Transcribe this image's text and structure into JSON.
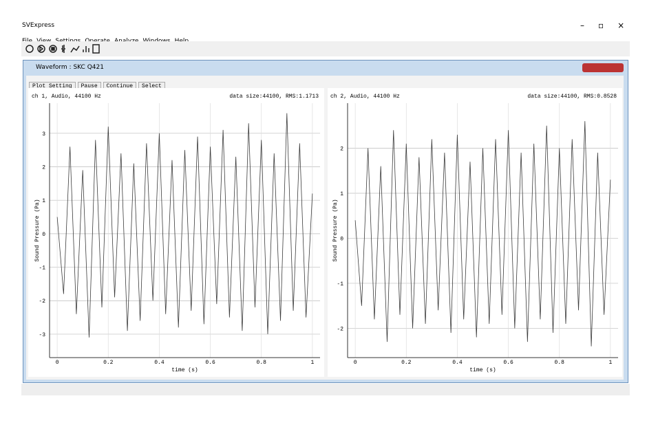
{
  "app": {
    "title": "SVExpress",
    "menu": [
      "File",
      "View",
      "Settings",
      "Operate",
      "Analyze",
      "Windows",
      "Help"
    ]
  },
  "window": {
    "title": "Waveform : SKC Q421",
    "buttons": [
      "Plot Setting",
      "Pause",
      "Continue",
      "Select"
    ]
  },
  "chart_data": [
    {
      "type": "line",
      "title": "ch 1, Audio, 44100 Hz",
      "subtitle": "data size:44100, RMS:1.1713",
      "x_label": "time (s)",
      "y_label": "Sound Pressure (Pa)",
      "x": [
        0,
        0.025,
        0.05,
        0.075,
        0.1,
        0.125,
        0.15,
        0.175,
        0.2,
        0.225,
        0.25,
        0.275,
        0.3,
        0.325,
        0.35,
        0.375,
        0.4,
        0.425,
        0.45,
        0.475,
        0.5,
        0.525,
        0.55,
        0.575,
        0.6,
        0.625,
        0.65,
        0.675,
        0.7,
        0.725,
        0.75,
        0.775,
        0.8,
        0.825,
        0.85,
        0.875,
        0.9,
        0.925,
        0.95,
        0.975,
        1
      ],
      "series": [
        {
          "color": "#3a3a3a",
          "values": [
            0.5,
            -1.8,
            2.6,
            -2.4,
            1.9,
            -3.1,
            2.8,
            -2.2,
            3.2,
            -1.9,
            2.4,
            -2.9,
            2.1,
            -2.6,
            2.7,
            -2.0,
            3.0,
            -2.4,
            2.2,
            -2.8,
            2.5,
            -2.3,
            2.9,
            -2.7,
            2.6,
            -2.1,
            3.1,
            -2.5,
            2.3,
            -2.9,
            3.3,
            -2.2,
            2.8,
            -3.0,
            2.4,
            -2.6,
            3.6,
            -2.3,
            2.7,
            -2.5,
            1.2
          ]
        }
      ],
      "xlim": [
        -0.03,
        1.03
      ],
      "xticks": [
        0,
        0.2,
        0.4,
        0.6,
        0.8,
        1
      ],
      "ylim": [
        -3.7,
        3.9
      ],
      "yticks": [
        -3,
        -2,
        -1,
        0,
        1,
        2,
        3
      ],
      "grid": true
    },
    {
      "type": "line",
      "title": "ch 2, Audio, 44100 Hz",
      "subtitle": "data size:44100, RMS:0.8528",
      "x_label": "time (s)",
      "y_label": "Sound Pressure (Pa)",
      "x": [
        0,
        0.025,
        0.05,
        0.075,
        0.1,
        0.125,
        0.15,
        0.175,
        0.2,
        0.225,
        0.25,
        0.275,
        0.3,
        0.325,
        0.35,
        0.375,
        0.4,
        0.425,
        0.45,
        0.475,
        0.5,
        0.525,
        0.55,
        0.575,
        0.6,
        0.625,
        0.65,
        0.675,
        0.7,
        0.725,
        0.75,
        0.775,
        0.8,
        0.825,
        0.85,
        0.875,
        0.9,
        0.925,
        0.95,
        0.975,
        1
      ],
      "series": [
        {
          "color": "#3a3a3a",
          "values": [
            0.4,
            -1.5,
            2.0,
            -1.8,
            1.6,
            -2.3,
            2.4,
            -1.7,
            2.1,
            -2.0,
            1.8,
            -1.9,
            2.2,
            -1.6,
            1.9,
            -2.1,
            2.3,
            -1.8,
            1.7,
            -2.2,
            2.0,
            -1.9,
            2.2,
            -1.7,
            2.4,
            -2.0,
            1.9,
            -2.3,
            2.1,
            -1.8,
            2.5,
            -2.1,
            2.0,
            -1.9,
            2.2,
            -1.6,
            2.6,
            -2.4,
            1.9,
            -1.7,
            1.3
          ]
        }
      ],
      "xlim": [
        -0.03,
        1.03
      ],
      "xticks": [
        0,
        0.2,
        0.4,
        0.6,
        0.8,
        1
      ],
      "ylim": [
        -2.65,
        3.0
      ],
      "yticks": [
        -2,
        -1,
        0,
        1,
        2
      ],
      "grid": true
    }
  ]
}
